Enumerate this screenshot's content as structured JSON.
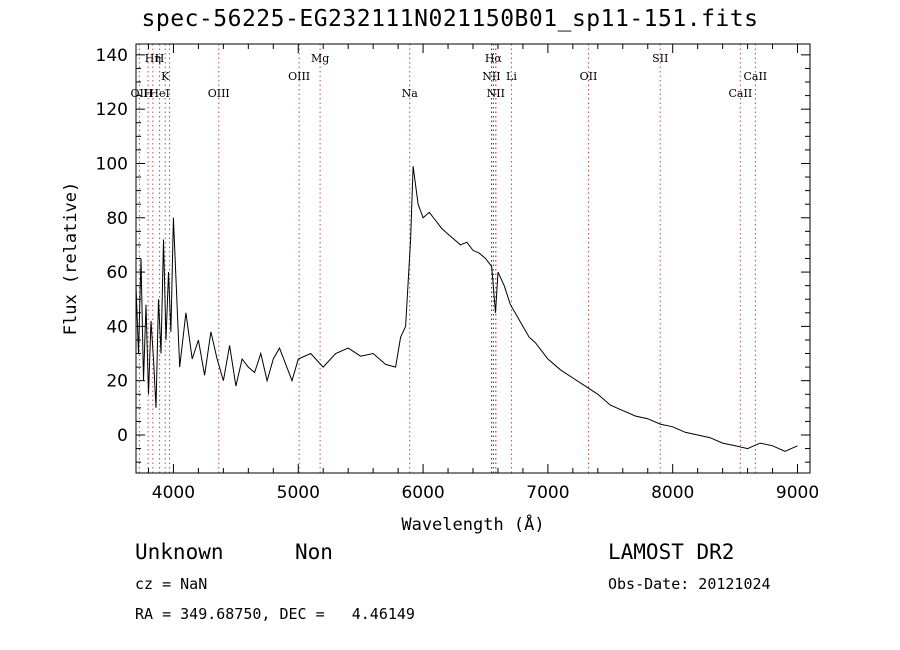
{
  "chart_data": {
    "type": "line",
    "title": "spec-56225-EG232111N021150B01_sp11-151.fits",
    "xlabel": "Wavelength (Å)",
    "ylabel": "Flux (relative)",
    "xlim": [
      3700,
      9100
    ],
    "ylim": [
      -14,
      144
    ],
    "xticks": [
      "4000",
      "5000",
      "6000",
      "7000",
      "8000",
      "9000"
    ],
    "yticks": [
      "0",
      "20",
      "40",
      "60",
      "80",
      "100",
      "120",
      "140"
    ],
    "grid": false,
    "series": [
      {
        "x": [
          3700,
          3720,
          3740,
          3760,
          3780,
          3800,
          3820,
          3840,
          3860,
          3880,
          3900,
          3920,
          3940,
          3960,
          3980,
          4000,
          4050,
          4100,
          4150,
          4200,
          4250,
          4300,
          4350,
          4400,
          4450,
          4500,
          4550,
          4600,
          4650,
          4700,
          4750,
          4800,
          4850,
          4900,
          4950,
          5000,
          5100,
          5200,
          5300,
          5400,
          5500,
          5600,
          5700,
          5780,
          5820,
          5860,
          5900,
          5920,
          5940,
          5960,
          6000,
          6050,
          6100,
          6150,
          6200,
          6250,
          6300,
          6350,
          6400,
          6450,
          6500,
          6550,
          6580,
          6600,
          6650,
          6700,
          6750,
          6800,
          6850,
          6900,
          6950,
          7000,
          7100,
          7200,
          7300,
          7400,
          7500,
          7600,
          7700,
          7800,
          7900,
          8000,
          8100,
          8200,
          8300,
          8400,
          8500,
          8600,
          8700,
          8800,
          8900,
          9000
        ],
        "y": [
          55,
          30,
          65,
          20,
          48,
          15,
          42,
          28,
          10,
          50,
          30,
          72,
          35,
          60,
          38,
          80,
          25,
          45,
          28,
          35,
          22,
          38,
          28,
          20,
          33,
          18,
          28,
          25,
          23,
          30,
          20,
          28,
          32,
          26,
          20,
          28,
          30,
          25,
          30,
          32,
          29,
          30,
          26,
          25,
          36,
          40,
          72,
          99,
          92,
          85,
          80,
          82,
          79,
          76,
          74,
          72,
          70,
          71,
          68,
          67,
          65,
          62,
          45,
          60,
          55,
          48,
          44,
          40,
          36,
          34,
          31,
          28,
          24,
          21,
          18,
          15,
          11,
          9,
          7,
          6,
          4,
          3,
          1,
          0,
          -1,
          -3,
          -4,
          -5,
          -3,
          -4,
          -6,
          -4
        ]
      }
    ],
    "annotations": [
      {
        "label": "Hη",
        "x": 3835,
        "row": 1
      },
      {
        "label": "H",
        "x": 3889,
        "row": 1
      },
      {
        "label": "K",
        "x": 3934,
        "row": 2
      },
      {
        "label": "OII",
        "x": 3727,
        "row": 3
      },
      {
        "label": "H",
        "x": 3797,
        "row": 3
      },
      {
        "label": "HeI",
        "x": 3889,
        "row": 3
      },
      {
        "label": "OIII",
        "x": 4363,
        "row": 3
      },
      {
        "label": "Mg",
        "x": 5175,
        "row": 1
      },
      {
        "label": "OIII",
        "x": 5007,
        "row": 2
      },
      {
        "label": "Na",
        "x": 5893,
        "row": 3
      },
      {
        "label": "Hα",
        "x": 6563,
        "row": 1
      },
      {
        "label": "NII",
        "x": 6548,
        "row": 2
      },
      {
        "label": "Li",
        "x": 6708,
        "row": 2
      },
      {
        "label": "NII",
        "x": 6583,
        "row": 3
      },
      {
        "label": "OII",
        "x": 7325,
        "row": 2
      },
      {
        "label": "SII",
        "x": 7900,
        "row": 1
      },
      {
        "label": "CaII",
        "x": 8662,
        "row": 2
      },
      {
        "label": "CaII",
        "x": 8542,
        "row": 3
      }
    ],
    "marker_lines": [
      3727,
      3797,
      3835,
      3889,
      3934,
      3969,
      4363,
      5007,
      5175,
      5893,
      6548,
      6563,
      6583,
      6708,
      7325,
      7900,
      8542,
      8662
    ]
  },
  "footer": {
    "class_label": "Unknown",
    "subclass_label": "Non",
    "survey": "LAMOST DR2",
    "cz": "cz = NaN",
    "obs_date": "Obs-Date: 20121024",
    "radec": "RA = 349.68750, DEC =   4.46149"
  }
}
